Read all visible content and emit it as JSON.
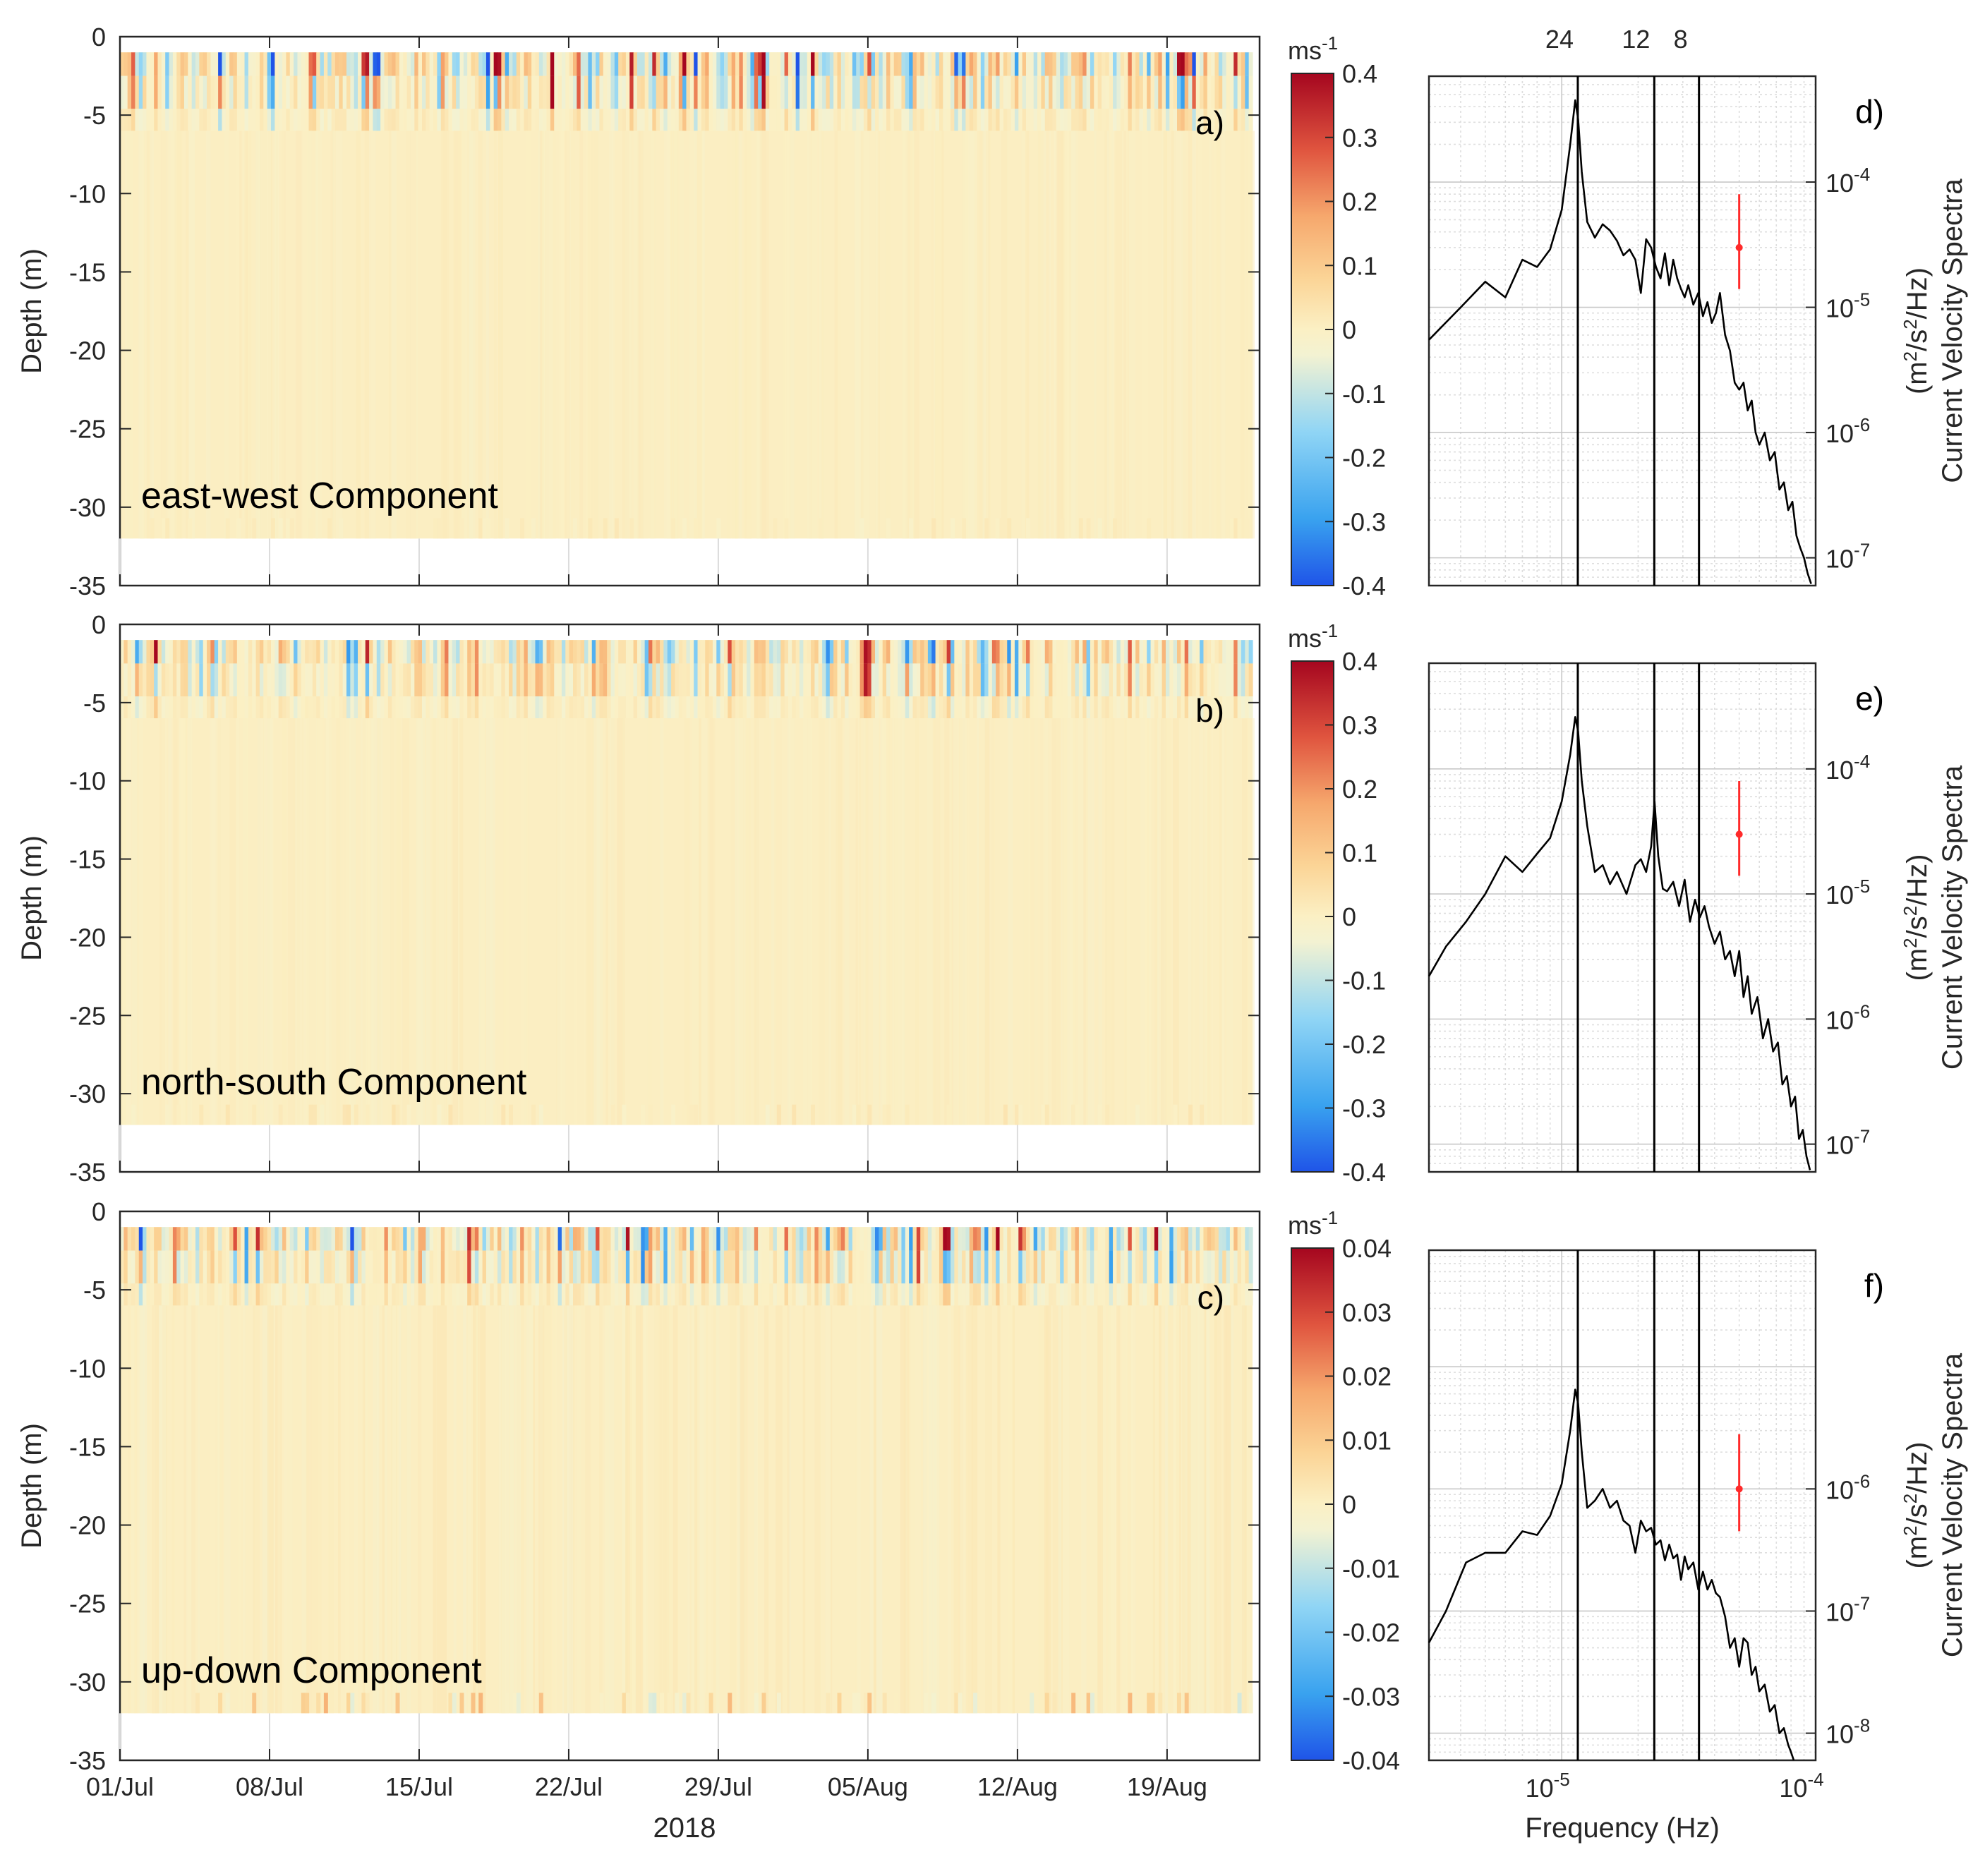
{
  "chart_data": [
    {
      "type": "heatmap",
      "id": "a",
      "panel_label": "a)",
      "annotation": "east-west Component",
      "ylabel": "Depth (m)",
      "ylim": [
        -35,
        0
      ],
      "yticks": [
        0,
        -5,
        -10,
        -15,
        -20,
        -25,
        -30,
        -35
      ],
      "data_depth_range": [
        -32,
        -1
      ],
      "xtick_labels": [
        "01/Jul",
        "08/Jul",
        "15/Jul",
        "22/Jul",
        "29/Jul",
        "05/Aug",
        "12/Aug",
        "19/Aug"
      ],
      "colorbar": {
        "unit_base": "ms",
        "unit_exp": "-1",
        "range": [
          -0.4,
          0.4
        ],
        "ticks": [
          "0.4",
          "0.3",
          "0.2",
          "0.1",
          "0",
          "-0.1",
          "-0.2",
          "-0.3",
          "-0.4"
        ]
      },
      "surface_amplitude": 0.4,
      "deep_amplitude": 0.02,
      "bottom_amplitude": 0.02
    },
    {
      "type": "heatmap",
      "id": "b",
      "panel_label": "b)",
      "annotation": "north-south Component",
      "ylabel": "Depth (m)",
      "ylim": [
        -35,
        0
      ],
      "yticks": [
        0,
        -5,
        -10,
        -15,
        -20,
        -25,
        -30,
        -35
      ],
      "data_depth_range": [
        -32,
        -1
      ],
      "xtick_labels": [
        "01/Jul",
        "08/Jul",
        "15/Jul",
        "22/Jul",
        "29/Jul",
        "05/Aug",
        "12/Aug",
        "19/Aug"
      ],
      "colorbar": {
        "unit_base": "ms",
        "unit_exp": "-1",
        "range": [
          -0.4,
          0.4
        ],
        "ticks": [
          "0.4",
          "0.3",
          "0.2",
          "0.1",
          "0",
          "-0.1",
          "-0.2",
          "-0.3",
          "-0.4"
        ]
      },
      "surface_amplitude": 0.32,
      "deep_amplitude": 0.02,
      "bottom_amplitude": 0.03
    },
    {
      "type": "heatmap",
      "id": "c",
      "panel_label": "c)",
      "annotation": "up-down Component",
      "ylabel": "Depth (m)",
      "ylim": [
        -35,
        0
      ],
      "yticks": [
        0,
        -5,
        -10,
        -15,
        -20,
        -25,
        -30,
        -35
      ],
      "data_depth_range": [
        -32,
        -1
      ],
      "xtick_labels": [
        "01/Jul",
        "08/Jul",
        "15/Jul",
        "22/Jul",
        "29/Jul",
        "05/Aug",
        "12/Aug",
        "19/Aug"
      ],
      "xlabel": "2018",
      "colorbar": {
        "unit_base": "ms",
        "unit_exp": "-1",
        "range": [
          -0.04,
          0.04
        ],
        "ticks": [
          "0.04",
          "0.03",
          "0.02",
          "0.01",
          "0",
          "-0.01",
          "-0.02",
          "-0.03",
          "-0.04"
        ]
      },
      "surface_amplitude": 0.034,
      "deep_amplitude": 0.003,
      "bottom_amplitude": 0.012
    },
    {
      "type": "line",
      "id": "d",
      "panel_label": "d)",
      "xscale": "log",
      "yscale": "log",
      "xlim": [
        3e-06,
        0.0001
      ],
      "ylim": [
        6e-08,
        0.0007
      ],
      "ylabel_line1": "Current Velocity Spectra",
      "ylabel_line2_parts": [
        "(m",
        "2",
        "/s",
        "2",
        "/Hz)"
      ],
      "yticks": [
        {
          "mant": "10",
          "exp": "-4",
          "value": 0.0001
        },
        {
          "mant": "10",
          "exp": "-5",
          "value": 1e-05
        },
        {
          "mant": "10",
          "exp": "-6",
          "value": 1e-06
        },
        {
          "mant": "10",
          "exp": "-7",
          "value": 1e-07
        }
      ],
      "period_lines": [
        {
          "label": "24",
          "freq": 1.157e-05
        },
        {
          "label": "12",
          "freq": 2.315e-05
        },
        {
          "label": "8",
          "freq": 3.472e-05
        }
      ],
      "errorbar": {
        "freq": 5e-05,
        "center": 3e-05,
        "low": 1.4e-05,
        "high": 8e-05
      },
      "series": [
        {
          "name": "spectrum",
          "x": [
            3e-06,
            4e-06,
            5e-06,
            6e-06,
            7e-06,
            8e-06,
            9e-06,
            1e-05,
            1.08e-05,
            1.13e-05,
            1.16e-05,
            1.2e-05,
            1.26e-05,
            1.35e-05,
            1.45e-05,
            1.55e-05,
            1.65e-05,
            1.75e-05,
            1.85e-05,
            1.95e-05,
            2.05e-05,
            2.15e-05,
            2.25e-05,
            2.35e-05,
            2.45e-05,
            2.55e-05,
            2.65e-05,
            2.75e-05,
            2.85e-05,
            2.95e-05,
            3.05e-05,
            3.15e-05,
            3.3e-05,
            3.45e-05,
            3.6e-05,
            3.75e-05,
            3.9e-05,
            4.05e-05,
            4.2e-05,
            4.4e-05,
            4.6e-05,
            4.8e-05,
            5e-05,
            5.2e-05,
            5.4e-05,
            5.6e-05,
            5.8e-05,
            6e-05,
            6.3e-05,
            6.6e-05,
            6.9e-05,
            7.2e-05,
            7.5e-05,
            7.8e-05,
            8.1e-05,
            8.4e-05,
            8.7e-05,
            9e-05,
            9.3e-05,
            9.6e-05
          ],
          "y": [
            5.5e-06,
            1e-05,
            1.6e-05,
            1.2e-05,
            2.4e-05,
            2.1e-05,
            2.9e-05,
            6e-05,
            0.0002,
            0.00045,
            0.00032,
            0.00012,
            4.8e-05,
            3.6e-05,
            4.6e-05,
            4.1e-05,
            3.4e-05,
            2.6e-05,
            2.9e-05,
            2.4e-05,
            1.3e-05,
            3.5e-05,
            3e-05,
            2.1e-05,
            1.7e-05,
            2.7e-05,
            1.5e-05,
            2.4e-05,
            1.7e-05,
            1.4e-05,
            1.2e-05,
            1.5e-05,
            1.05e-05,
            1.3e-05,
            8.5e-06,
            1.1e-05,
            7.5e-06,
            9e-06,
            1.3e-05,
            6e-06,
            4.5e-06,
            2.5e-06,
            2.2e-06,
            2.5e-06,
            1.5e-06,
            1.8e-06,
            1e-06,
            8e-07,
            1e-06,
            6e-07,
            7e-07,
            3.5e-07,
            4e-07,
            2.4e-07,
            2.8e-07,
            1.5e-07,
            1.2e-07,
            1e-07,
            7.5e-08,
            6.2e-08
          ]
        }
      ]
    },
    {
      "type": "line",
      "id": "e",
      "panel_label": "e)",
      "xscale": "log",
      "yscale": "log",
      "xlim": [
        3e-06,
        0.0001
      ],
      "ylim": [
        6e-08,
        0.0007
      ],
      "ylabel_line1": "Current Velocity Spectra",
      "ylabel_line2_parts": [
        "(m",
        "2",
        "/s",
        "2",
        "/Hz)"
      ],
      "yticks": [
        {
          "mant": "10",
          "exp": "-4",
          "value": 0.0001
        },
        {
          "mant": "10",
          "exp": "-5",
          "value": 1e-05
        },
        {
          "mant": "10",
          "exp": "-6",
          "value": 1e-06
        },
        {
          "mant": "10",
          "exp": "-7",
          "value": 1e-07
        }
      ],
      "period_lines": [
        {
          "label": "24",
          "freq": 1.157e-05
        },
        {
          "label": "12",
          "freq": 2.315e-05
        },
        {
          "label": "8",
          "freq": 3.472e-05
        }
      ],
      "errorbar": {
        "freq": 5e-05,
        "center": 3e-05,
        "low": 1.4e-05,
        "high": 8e-05
      },
      "series": [
        {
          "name": "spectrum",
          "x": [
            3e-06,
            3.5e-06,
            4.2e-06,
            5e-06,
            6e-06,
            7e-06,
            8e-06,
            9e-06,
            1e-05,
            1.08e-05,
            1.13e-05,
            1.16e-05,
            1.2e-05,
            1.26e-05,
            1.35e-05,
            1.45e-05,
            1.55e-05,
            1.65e-05,
            1.8e-05,
            1.95e-05,
            2.05e-05,
            2.15e-05,
            2.25e-05,
            2.32e-05,
            2.4e-05,
            2.5e-05,
            2.6e-05,
            2.75e-05,
            2.9e-05,
            3.05e-05,
            3.2e-05,
            3.35e-05,
            3.5e-05,
            3.65e-05,
            3.8e-05,
            4e-05,
            4.2e-05,
            4.4e-05,
            4.6e-05,
            4.8e-05,
            5e-05,
            5.2e-05,
            5.4e-05,
            5.6e-05,
            5.9e-05,
            6.2e-05,
            6.5e-05,
            6.8e-05,
            7.1e-05,
            7.4e-05,
            7.7e-05,
            8e-05,
            8.3e-05,
            8.6e-05,
            8.9e-05,
            9.2e-05,
            9.5e-05
          ],
          "y": [
            2.2e-06,
            3.8e-06,
            6e-06,
            1e-05,
            2e-05,
            1.5e-05,
            2.1e-05,
            2.8e-05,
            5.5e-05,
            0.00013,
            0.00026,
            0.0002,
            8e-05,
            3.5e-05,
            1.5e-05,
            1.7e-05,
            1.2e-05,
            1.5e-05,
            1e-05,
            1.7e-05,
            1.9e-05,
            1.5e-05,
            2.4e-05,
            5.5e-05,
            2e-05,
            1.1e-05,
            1.05e-05,
            1.25e-05,
            8e-06,
            1.3e-05,
            6e-06,
            9e-06,
            6.5e-06,
            8e-06,
            5.5e-06,
            4e-06,
            5e-06,
            3e-06,
            3.5e-06,
            2.2e-06,
            3.5e-06,
            1.5e-06,
            2.2e-06,
            1.1e-06,
            1.5e-06,
            7e-07,
            1e-06,
            5.5e-07,
            6.5e-07,
            3e-07,
            3.5e-07,
            2e-07,
            2.4e-07,
            1.1e-07,
            1.3e-07,
            8e-08,
            6.2e-08
          ]
        }
      ]
    },
    {
      "type": "line",
      "id": "f",
      "panel_label": "f)",
      "xscale": "log",
      "yscale": "log",
      "xlim": [
        3e-06,
        0.0001
      ],
      "ylim": [
        6e-09,
        9e-05
      ],
      "xlabel": "Frequency (Hz)",
      "xticks": [
        {
          "mant": "10",
          "exp": "-5",
          "value": 1e-05
        },
        {
          "mant": "10",
          "exp": "-4",
          "value": 0.0001
        }
      ],
      "ylabel_line1": "Current Velocity Spectra",
      "ylabel_line2_parts": [
        "(m",
        "2",
        "/s",
        "2",
        "/Hz)"
      ],
      "yticks": [
        {
          "mant": "10",
          "exp": "-6",
          "value": 1e-06
        },
        {
          "mant": "10",
          "exp": "-7",
          "value": 1e-07
        },
        {
          "mant": "10",
          "exp": "-8",
          "value": 1e-08
        }
      ],
      "period_lines": [
        {
          "label": "24",
          "freq": 1.157e-05
        },
        {
          "label": "12",
          "freq": 2.315e-05
        },
        {
          "label": "8",
          "freq": 3.472e-05
        }
      ],
      "errorbar": {
        "freq": 5e-05,
        "center": 1e-06,
        "low": 4.5e-07,
        "high": 2.8e-06
      },
      "series": [
        {
          "name": "spectrum",
          "x": [
            3e-06,
            3.5e-06,
            4.2e-06,
            5e-06,
            6e-06,
            7e-06,
            8e-06,
            9e-06,
            1e-05,
            1.08e-05,
            1.13e-05,
            1.16e-05,
            1.2e-05,
            1.26e-05,
            1.35e-05,
            1.45e-05,
            1.55e-05,
            1.65e-05,
            1.75e-05,
            1.85e-05,
            1.95e-05,
            2.05e-05,
            2.15e-05,
            2.25e-05,
            2.35e-05,
            2.45e-05,
            2.55e-05,
            2.65e-05,
            2.75e-05,
            2.85e-05,
            2.95e-05,
            3.05e-05,
            3.15e-05,
            3.3e-05,
            3.45e-05,
            3.6e-05,
            3.75e-05,
            3.9e-05,
            4.05e-05,
            4.2e-05,
            4.4e-05,
            4.6e-05,
            4.8e-05,
            5e-05,
            5.2e-05,
            5.4e-05,
            5.6e-05,
            5.8e-05,
            6e-05,
            6.3e-05,
            6.6e-05,
            6.9e-05,
            7.2e-05,
            7.5e-05,
            7.8e-05,
            8e-05,
            8.2e-05
          ],
          "y": [
            5.5e-08,
            1e-07,
            2.5e-07,
            3e-07,
            3e-07,
            4.5e-07,
            4.2e-07,
            6e-07,
            1.1e-06,
            3e-06,
            6.5e-06,
            5e-06,
            2e-06,
            7e-07,
            8e-07,
            1e-06,
            7e-07,
            8e-07,
            5.5e-07,
            5e-07,
            3e-07,
            5.5e-07,
            4.5e-07,
            4.8e-07,
            3.5e-07,
            3.8e-07,
            2.6e-07,
            3.5e-07,
            2.7e-07,
            2.9e-07,
            1.8e-07,
            2.8e-07,
            2.2e-07,
            2.5e-07,
            1.5e-07,
            2.1e-07,
            1.5e-07,
            1.8e-07,
            1.4e-07,
            1.3e-07,
            9e-08,
            5e-08,
            6e-08,
            3.5e-08,
            6e-08,
            5.5e-08,
            3e-08,
            3.5e-08,
            2.2e-08,
            2.5e-08,
            1.5e-08,
            1.7e-08,
            1e-08,
            1.1e-08,
            8e-09,
            7e-09,
            6e-09
          ]
        }
      ]
    }
  ]
}
